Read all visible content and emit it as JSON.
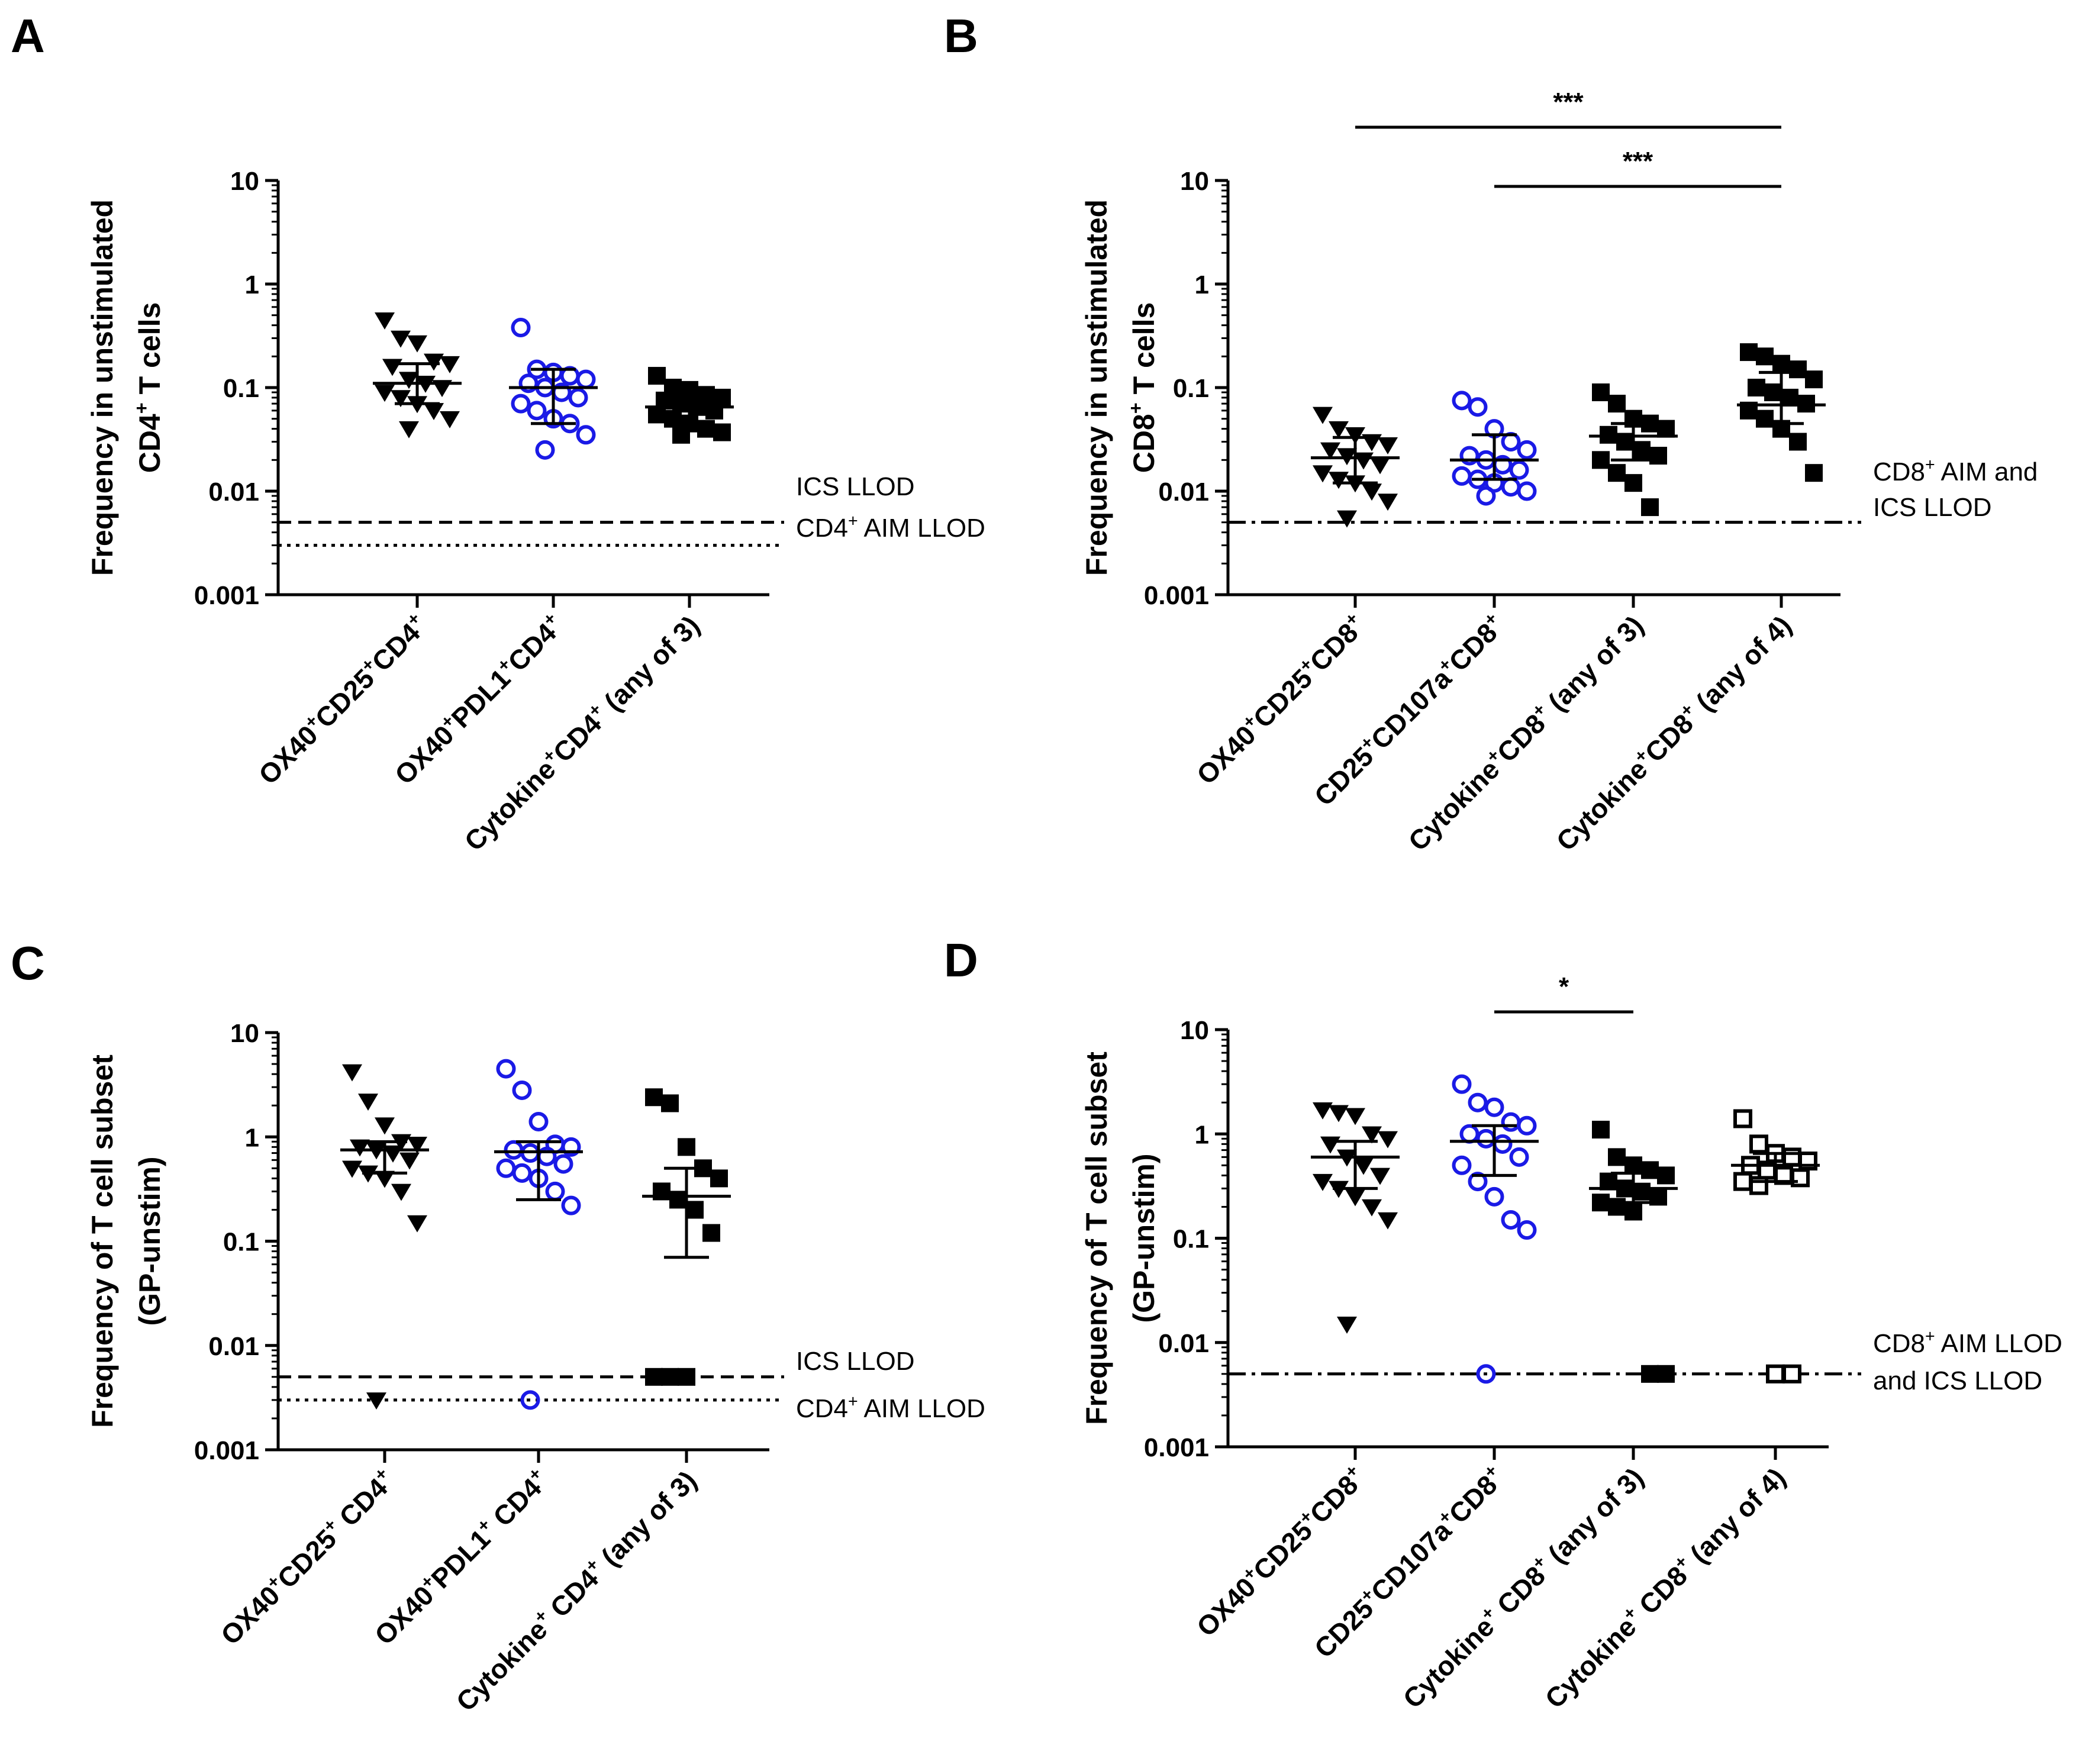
{
  "figure": {
    "colors": {
      "black": "#000000",
      "blue": "#1a1ae6"
    }
  },
  "chart_data": [
    {
      "panel": "A",
      "type": "scatter",
      "scale": "log",
      "ylabel": "Frequency in unstimulated",
      "ylabel2": [
        "CD4",
        "+",
        " T cells"
      ],
      "ylim": [
        0.001,
        10
      ],
      "yticks": [
        "10",
        "1",
        "0.1",
        "0.01",
        "0.001"
      ],
      "categories": [
        [
          [
            "OX40",
            "+"
          ],
          [
            "CD25",
            "+"
          ],
          [
            "CD4",
            "+"
          ]
        ],
        [
          [
            "OX40",
            "+"
          ],
          [
            "PDL1",
            "+"
          ],
          [
            "CD4",
            "+"
          ]
        ],
        [
          [
            "Cytokine",
            "+"
          ],
          [
            "CD4",
            "+"
          ],
          [
            " (any of 3)",
            ""
          ]
        ]
      ],
      "series": [
        {
          "marker": "triangle-down",
          "color": "black",
          "mean": 0.11,
          "sd": [
            0.07,
            0.17
          ],
          "values": [
            0.45,
            0.3,
            0.27,
            0.18,
            0.17,
            0.16,
            0.12,
            0.11,
            0.1,
            0.09,
            0.08,
            0.07,
            0.06,
            0.05,
            0.04
          ]
        },
        {
          "marker": "circle-open",
          "color": "blue",
          "mean": 0.1,
          "sd": [
            0.045,
            0.15
          ],
          "values": [
            0.38,
            0.15,
            0.14,
            0.13,
            0.12,
            0.11,
            0.1,
            0.09,
            0.08,
            0.07,
            0.06,
            0.05,
            0.045,
            0.035,
            0.025
          ]
        },
        {
          "marker": "square-filled",
          "color": "black",
          "mean": 0.065,
          "sd": [
            0.045,
            0.09
          ],
          "values": [
            0.13,
            0.1,
            0.095,
            0.085,
            0.08,
            0.075,
            0.07,
            0.065,
            0.06,
            0.055,
            0.05,
            0.045,
            0.04,
            0.037,
            0.035
          ]
        }
      ],
      "lines": [
        {
          "value": 0.005,
          "style": "dashed",
          "label": [
            "ICS LLOD"
          ]
        },
        {
          "value": 0.003,
          "style": "dotted",
          "label": [
            [
              "CD4",
              "+",
              " AIM LLOD"
            ]
          ]
        }
      ],
      "brackets": []
    },
    {
      "panel": "B",
      "type": "scatter",
      "scale": "log",
      "ylabel": "Frequency in unstimulated",
      "ylabel2": [
        "CD8",
        "+",
        " T cells"
      ],
      "ylim": [
        0.001,
        10
      ],
      "yticks": [
        "10",
        "1",
        "0.1",
        "0.01",
        "0.001"
      ],
      "categories": [
        [
          [
            "OX40",
            "+"
          ],
          [
            "CD25",
            "+"
          ],
          [
            "CD8",
            "+"
          ]
        ],
        [
          [
            "CD25",
            "+"
          ],
          [
            "CD107a",
            "+"
          ],
          [
            "CD8",
            "+"
          ]
        ],
        [
          [
            "Cytokine",
            "+"
          ],
          [
            "CD8",
            "+"
          ],
          [
            " (any of 3)",
            ""
          ]
        ],
        [
          [
            "Cytokine",
            "+"
          ],
          [
            "CD8",
            "+"
          ],
          [
            " (any of 4)",
            ""
          ]
        ]
      ],
      "series": [
        {
          "marker": "triangle-down",
          "color": "black",
          "mean": 0.021,
          "sd": [
            0.012,
            0.033
          ],
          "values": [
            0.055,
            0.04,
            0.035,
            0.03,
            0.028,
            0.025,
            0.022,
            0.02,
            0.018,
            0.015,
            0.013,
            0.012,
            0.01,
            0.008,
            0.0055
          ]
        },
        {
          "marker": "circle-open",
          "color": "blue",
          "mean": 0.02,
          "sd": [
            0.013,
            0.035
          ],
          "values": [
            0.075,
            0.065,
            0.04,
            0.03,
            0.025,
            0.022,
            0.02,
            0.018,
            0.016,
            0.014,
            0.013,
            0.012,
            0.011,
            0.01,
            0.009
          ]
        },
        {
          "marker": "square-filled",
          "color": "black",
          "mean": 0.034,
          "sd": [
            0.02,
            0.045
          ],
          "values": [
            0.09,
            0.07,
            0.05,
            0.045,
            0.04,
            0.035,
            0.03,
            0.025,
            0.022,
            0.02,
            0.015,
            0.012,
            0.007
          ]
        },
        {
          "marker": "square-filled",
          "color": "black",
          "mean": 0.068,
          "sd": [
            0.045,
            0.14
          ],
          "values": [
            0.22,
            0.2,
            0.17,
            0.15,
            0.12,
            0.1,
            0.09,
            0.08,
            0.07,
            0.06,
            0.05,
            0.04,
            0.03,
            0.015
          ]
        }
      ],
      "lines": [
        {
          "value": 0.005,
          "style": "dashdot",
          "label": [
            [
              "CD8",
              "+",
              " AIM and"
            ],
            "ICS LLOD"
          ]
        }
      ],
      "brackets": [
        {
          "from": 0,
          "to": 3,
          "level": 0,
          "label": "***"
        },
        {
          "from": 1,
          "to": 3,
          "level": 1,
          "label": "***"
        }
      ]
    },
    {
      "panel": "C",
      "type": "scatter",
      "scale": "log",
      "ylabel": "Frequency of T cell subset",
      "ylabel2": [
        "(GP-unstim)",
        "",
        ""
      ],
      "ylim": [
        0.001,
        10
      ],
      "yticks": [
        "10",
        "1",
        "0.1",
        "0.01",
        "0.001"
      ],
      "categories": [
        [
          [
            "OX40",
            "+"
          ],
          [
            "CD25",
            "+"
          ],
          [
            " CD4",
            "+"
          ]
        ],
        [
          [
            "OX40",
            "+"
          ],
          [
            "PDL1",
            "+"
          ],
          [
            " CD4",
            "+"
          ]
        ],
        [
          [
            "Cytokine",
            "+"
          ],
          [
            " CD4",
            "+"
          ],
          [
            " (any of 3)",
            ""
          ]
        ]
      ],
      "series": [
        {
          "marker": "triangle-down",
          "color": "black",
          "mean": 0.75,
          "sd": [
            0.45,
            0.9
          ],
          "values": [
            4.2,
            2.2,
            1.3,
            0.9,
            0.85,
            0.8,
            0.75,
            0.7,
            0.6,
            0.5,
            0.45,
            0.4,
            0.3,
            0.15,
            0.003
          ]
        },
        {
          "marker": "circle-open",
          "color": "blue",
          "mean": 0.72,
          "sd": [
            0.25,
            0.9
          ],
          "values": [
            4.5,
            2.8,
            1.4,
            0.85,
            0.8,
            0.75,
            0.7,
            0.65,
            0.55,
            0.5,
            0.45,
            0.4,
            0.3,
            0.22,
            0.003
          ]
        },
        {
          "marker": "square-filled",
          "color": "black",
          "mean": 0.27,
          "sd": [
            0.07,
            0.5
          ],
          "values": [
            2.4,
            2.1,
            0.8,
            0.5,
            0.4,
            0.3,
            0.25,
            0.2,
            0.12,
            0.005,
            0.005,
            0.005
          ]
        }
      ],
      "lines": [
        {
          "value": 0.005,
          "style": "dashed",
          "label": [
            "ICS LLOD"
          ]
        },
        {
          "value": 0.003,
          "style": "dotted",
          "label": [
            [
              "CD4",
              "+",
              " AIM LLOD"
            ]
          ]
        }
      ],
      "brackets": []
    },
    {
      "panel": "D",
      "type": "scatter",
      "scale": "log",
      "ylabel": "Frequency of T cell subset",
      "ylabel2": [
        "(GP-unstim)",
        "",
        ""
      ],
      "ylim": [
        0.001,
        10
      ],
      "yticks": [
        "10",
        "1",
        "0.1",
        "0.01",
        "0.001"
      ],
      "categories": [
        [
          [
            "OX40",
            "+"
          ],
          [
            "CD25",
            "+"
          ],
          [
            "CD8",
            "+"
          ]
        ],
        [
          [
            "CD25",
            "+"
          ],
          [
            "CD107a",
            "+"
          ],
          [
            "CD8",
            "+"
          ]
        ],
        [
          [
            "Cytokine",
            "+"
          ],
          [
            " CD8",
            "+"
          ],
          [
            " (any of 3)",
            ""
          ]
        ],
        [
          [
            "Cytokine",
            "+"
          ],
          [
            " CD8",
            "+"
          ],
          [
            " (any of 4)",
            ""
          ]
        ]
      ],
      "series": [
        {
          "marker": "triangle-down",
          "color": "black",
          "mean": 0.6,
          "sd": [
            0.3,
            0.85
          ],
          "values": [
            1.7,
            1.6,
            1.5,
            1.0,
            0.9,
            0.8,
            0.6,
            0.5,
            0.4,
            0.35,
            0.3,
            0.25,
            0.2,
            0.15,
            0.015
          ]
        },
        {
          "marker": "circle-open",
          "color": "blue",
          "mean": 0.85,
          "sd": [
            0.4,
            1.2
          ],
          "values": [
            3.0,
            2.0,
            1.8,
            1.3,
            1.2,
            1.0,
            0.9,
            0.8,
            0.6,
            0.5,
            0.35,
            0.25,
            0.15,
            0.12,
            0.005
          ]
        },
        {
          "marker": "square-filled",
          "color": "black",
          "mean": 0.3,
          "sd": [
            0.22,
            0.42
          ],
          "values": [
            1.1,
            0.6,
            0.5,
            0.45,
            0.4,
            0.35,
            0.3,
            0.28,
            0.25,
            0.22,
            0.2,
            0.18,
            0.005,
            0.005
          ]
        },
        {
          "marker": "square-open",
          "color": "black",
          "mean": 0.5,
          "sd": [
            0.35,
            0.65
          ],
          "values": [
            1.4,
            0.8,
            0.65,
            0.6,
            0.55,
            0.5,
            0.45,
            0.4,
            0.38,
            0.35,
            0.32,
            0.005,
            0.005
          ]
        }
      ],
      "lines": [
        {
          "value": 0.005,
          "style": "dashdot",
          "label": [
            [
              "CD8",
              "+",
              " AIM LLOD"
            ],
            "and ICS LLOD"
          ]
        }
      ],
      "brackets": [
        {
          "from": 1,
          "to": 2,
          "level": 0,
          "label": "*"
        }
      ]
    }
  ]
}
